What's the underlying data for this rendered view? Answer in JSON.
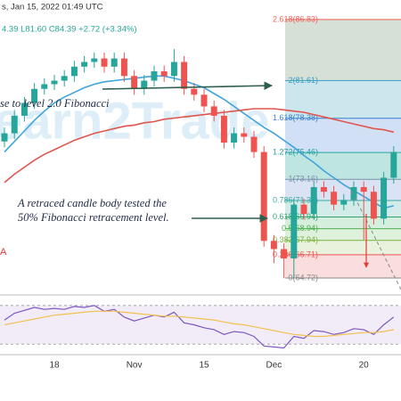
{
  "chart_data": {
    "type": "candlestick",
    "header": [
      "s, Jan 15, 2022 01:49 UTC",
      "4.39  L81.60  C84.39  +2.72 (+3.34%)"
    ],
    "watermark": "Learn2Trade",
    "annotations": [
      "se to level 2.0 Fibonacci",
      "A retraced candle body tested the",
      "50% Fibonacci retracement level.",
      "A"
    ],
    "categories": [
      null,
      null,
      null,
      null,
      null,
      "18",
      null,
      null,
      null,
      null,
      null,
      null,
      null,
      "Nov",
      null,
      null,
      null,
      null,
      null,
      null,
      "15",
      null,
      null,
      null,
      null,
      null,
      null,
      "Dec",
      null,
      null,
      null,
      null,
      null,
      null,
      null,
      null,
      "20",
      null,
      null,
      null
    ],
    "open": [
      76.4,
      77.1,
      78.6,
      79.7,
      80.9,
      81.3,
      81.6,
      82.0,
      82.8,
      83.2,
      83.5,
      82.8,
      83.5,
      82.0,
      80.9,
      81.6,
      82.4,
      82.0,
      83.2,
      80.9,
      80.4,
      79.4,
      78.6,
      76.3,
      77.1,
      76.8,
      75.5,
      67.9,
      67.2,
      66.4,
      71.0,
      70.2,
      72.5,
      72.1,
      71.0,
      71.4,
      72.5,
      72.1,
      69.8,
      73.3
    ],
    "high": [
      77.6,
      79.1,
      80.2,
      81.4,
      81.8,
      82.1,
      82.5,
      83.3,
      83.7,
      84.0,
      84.0,
      84.0,
      84.0,
      82.5,
      82.1,
      82.9,
      82.9,
      84.3,
      83.7,
      81.4,
      80.9,
      79.9,
      79.1,
      77.6,
      77.6,
      77.3,
      76.0,
      68.4,
      67.7,
      71.5,
      71.5,
      73.0,
      73.0,
      72.6,
      71.9,
      73.0,
      73.0,
      72.6,
      73.8,
      76.0
    ],
    "low": [
      75.9,
      76.6,
      78.1,
      79.2,
      80.4,
      80.8,
      81.1,
      81.5,
      82.3,
      82.7,
      82.3,
      82.3,
      81.5,
      80.4,
      80.4,
      81.1,
      81.5,
      81.5,
      80.4,
      79.9,
      78.9,
      78.1,
      75.8,
      75.8,
      76.3,
      75.0,
      67.4,
      66.0,
      64.7,
      64.7,
      69.7,
      69.7,
      71.6,
      70.5,
      70.5,
      70.9,
      68.0,
      69.3,
      69.3,
      72.8
    ],
    "close": [
      77.1,
      78.6,
      79.7,
      80.9,
      81.3,
      81.6,
      82.0,
      82.8,
      83.2,
      83.5,
      82.8,
      83.5,
      82.0,
      80.9,
      81.6,
      82.4,
      82.0,
      83.2,
      80.9,
      80.4,
      79.4,
      78.6,
      76.3,
      77.1,
      76.8,
      75.5,
      67.9,
      67.2,
      66.4,
      71.0,
      70.2,
      72.5,
      72.1,
      71.0,
      71.4,
      72.5,
      72.1,
      69.8,
      73.3,
      75.5
    ],
    "up_color": "#26a69a",
    "down_color": "#ef5350",
    "series": [
      {
        "color": "#3fa4dc",
        "values": [
          75.5,
          76.4,
          77.3,
          78.2,
          79.0,
          79.7,
          80.2,
          80.6,
          81.0,
          81.3,
          81.5,
          81.6,
          81.7,
          81.8,
          81.9,
          82.0,
          82.0,
          81.8,
          81.6,
          81.3,
          81.0,
          80.5,
          80.0,
          79.4,
          78.8,
          78.2,
          77.6,
          77.1,
          76.5,
          75.9,
          75.2,
          74.6,
          73.9,
          73.3,
          72.7,
          72.2,
          71.7,
          71.2,
          70.7,
          70.9
        ]
      },
      {
        "color": "#e0564f",
        "values": [
          72.9,
          73.6,
          74.2,
          74.8,
          75.3,
          75.7,
          76.1,
          76.5,
          76.8,
          77.1,
          77.3,
          77.5,
          77.7,
          77.8,
          78.0,
          78.1,
          78.3,
          78.4,
          78.5,
          78.6,
          78.7,
          78.8,
          78.9,
          79.0,
          79.1,
          79.2,
          79.2,
          79.2,
          79.1,
          79.0,
          78.9,
          78.7,
          78.5,
          78.3,
          78.1,
          77.9,
          77.7,
          77.5,
          77.4,
          77.2
        ]
      }
    ],
    "ylim": [
      63.35,
      88.5
    ],
    "fib_levels": [
      {
        "value": 86.83,
        "label": "2.618(86.83)",
        "color": "#f0625b",
        "band": "#c9d6c9"
      },
      {
        "value": 81.61,
        "label": "2(81.61)",
        "color": "#3d9dc0",
        "band": "#b9dde6"
      },
      {
        "value": 78.38,
        "label": "1.618(78.38)",
        "color": "#3d7fd0",
        "band": "#c3d6f3"
      },
      {
        "value": 75.46,
        "label": "1.272(75.46)",
        "color": "#27a3a0",
        "band": "#a8dcd6"
      },
      {
        "value": 73.16,
        "label": "1(73.16)",
        "color": "#7a8fa8",
        "band": "#cdd9f0"
      },
      {
        "value": 71.35,
        "label": "0.786(71.35)",
        "color": "#3aa8a0",
        "band": "#c4e6e3"
      },
      {
        "value": 69.94,
        "label": "0.618(69.94)",
        "color": "#2fa36b",
        "band": "#c8e8d3"
      },
      {
        "value": 68.94,
        "label": "0.5(68.94)",
        "color": "#4caf50",
        "band": "#d3ecd2"
      },
      {
        "value": 67.94,
        "label": "0.382(67.94)",
        "color": "#7cb342",
        "band": "#e0eed0"
      },
      {
        "value": 66.71,
        "label": "0.236(66.71)",
        "color": "#ef5350",
        "band": "#f8d2d2"
      },
      {
        "value": 64.72,
        "label": "0(64.72)",
        "color": "#888888",
        "band": null
      }
    ],
    "rsi": {
      "ylim": [
        20,
        80
      ],
      "levels": [
        70,
        30
      ],
      "series": [
        {
          "color": "#7e57c2",
          "values": [
            55,
            62,
            65,
            68,
            66,
            67,
            66,
            69,
            68,
            70,
            64,
            66,
            58,
            54,
            57,
            60,
            58,
            63,
            52,
            50,
            47,
            45,
            40,
            43,
            42,
            38,
            28,
            27,
            26,
            38,
            36,
            44,
            43,
            40,
            42,
            46,
            45,
            40,
            50,
            58
          ]
        },
        {
          "color": "#f2c14e",
          "values": [
            50,
            52,
            54,
            56,
            58,
            60,
            61,
            62,
            63,
            64,
            64,
            64,
            63,
            62,
            61,
            60,
            59,
            59,
            58,
            57,
            56,
            55,
            53,
            51,
            50,
            48,
            46,
            44,
            42,
            40,
            39,
            38,
            38,
            39,
            40,
            41,
            42,
            42,
            43,
            45
          ]
        }
      ]
    }
  }
}
